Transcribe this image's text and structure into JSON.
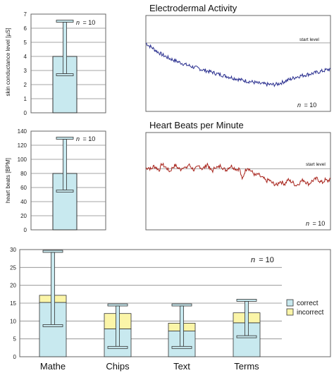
{
  "colors": {
    "bar": "#c8e9ef",
    "bar_stroke": "#333333",
    "incorrect": "#fbf5a8",
    "eda_line": "#2a2f8f",
    "hr_line": "#a8241c",
    "frame": "#666666"
  },
  "chart_data": [
    {
      "type": "bar",
      "panel": "eda-bar",
      "ylabel": "skin conductance level [µS]",
      "yticks": [
        "0",
        "1",
        "2",
        "3",
        "4",
        "5",
        "6",
        "7"
      ],
      "ylim": [
        0,
        7
      ],
      "value": 4.0,
      "error_low": 2.7,
      "error_high": 6.5,
      "n_label": "n",
      "n_value": "= 10"
    },
    {
      "type": "line",
      "panel": "eda-line",
      "title": "Electrodermal Activity",
      "reference_label": "start level",
      "reference_value": 5.0,
      "ylim": [
        0,
        7
      ],
      "n_label": "n",
      "n_value": "= 10",
      "values": [
        5.0,
        4.82,
        4.7,
        4.55,
        4.4,
        4.28,
        4.15,
        4.05,
        3.95,
        3.85,
        3.78,
        3.7,
        3.62,
        3.55,
        3.48,
        3.4,
        3.35,
        3.28,
        3.22,
        3.18,
        3.12,
        3.05,
        3.0,
        2.95,
        2.9,
        2.85,
        2.78,
        2.72,
        2.68,
        2.62,
        2.58,
        2.52,
        2.48,
        2.42,
        2.38,
        2.32,
        2.28,
        2.25,
        2.2,
        2.18,
        2.14,
        2.1,
        2.05,
        2.02,
        2.0,
        1.98,
        1.97,
        1.95,
        1.96,
        1.98,
        2.05,
        2.12,
        2.2,
        2.28,
        2.35,
        2.42,
        2.5,
        2.55,
        2.6,
        2.64,
        2.68,
        2.72,
        2.76,
        2.8,
        2.85,
        2.9,
        2.95,
        3.0,
        3.05,
        3.1
      ]
    },
    {
      "type": "bar",
      "panel": "hr-bar",
      "ylabel": "heart beats [BPM]",
      "yticks": [
        "0",
        "20",
        "40",
        "60",
        "80",
        "100",
        "120",
        "140"
      ],
      "ylim": [
        0,
        140
      ],
      "value": 80,
      "error_low": 55,
      "error_high": 130,
      "n_label": "n",
      "n_value": "= 10"
    },
    {
      "type": "line",
      "panel": "hr-line",
      "title": "Heart Beats per Minute",
      "reference_label": "start level",
      "reference_value": 88,
      "ylim": [
        0,
        140
      ],
      "n_label": "n",
      "n_value": "= 10",
      "values": [
        88,
        90,
        87,
        92,
        89,
        86,
        95,
        91,
        88,
        84,
        90,
        93,
        89,
        87,
        91,
        88,
        94,
        90,
        86,
        89,
        92,
        88,
        90,
        95,
        87,
        85,
        91,
        89,
        93,
        88,
        86,
        90,
        92,
        89,
        87,
        88,
        72,
        84,
        90,
        86,
        82,
        78,
        80,
        76,
        74,
        70,
        72,
        68,
        66,
        64,
        70,
        68,
        66,
        72,
        70,
        68,
        64,
        66,
        70,
        72,
        68,
        66,
        70,
        72,
        74,
        70,
        68,
        72,
        70,
        74
      ]
    },
    {
      "type": "bar",
      "panel": "tasks",
      "categories": [
        "Mathe",
        "Chips",
        "Text",
        "Terms"
      ],
      "yticks": [
        "0",
        "5",
        "10",
        "15",
        "20",
        "25",
        "30"
      ],
      "ylim": [
        0,
        30
      ],
      "series": [
        {
          "name": "correct",
          "values": [
            15.2,
            7.8,
            7.2,
            9.5
          ]
        },
        {
          "name": "incorrect",
          "values": [
            2.0,
            4.3,
            2.2,
            2.8
          ]
        }
      ],
      "error_low": [
        8.7,
        2.6,
        2.6,
        5.6
      ],
      "error_high": [
        29.5,
        14.5,
        14.5,
        15.8
      ],
      "legend_position": "right",
      "n_label": "n",
      "n_value": "= 10"
    }
  ]
}
